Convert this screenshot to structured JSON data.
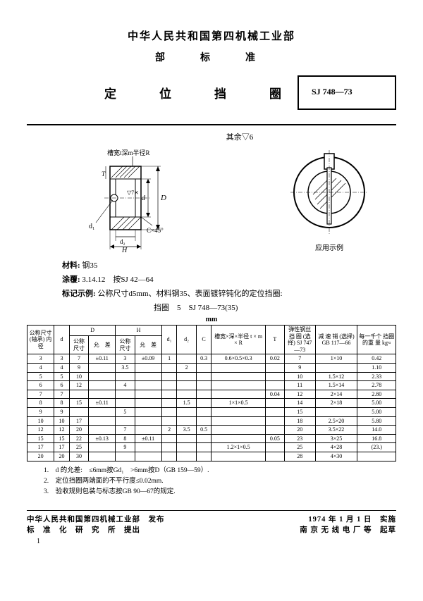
{
  "header": {
    "org": "中华人民共和国第四机械工业部",
    "sub": "部　标　准",
    "title": "定　位　挡　圈",
    "std_num": "SJ 748—73"
  },
  "diagram": {
    "top_note": "其余▽6",
    "callout_groove": "槽宽t深m半径R",
    "callout_dims": [
      "d",
      "d₁",
      "d₂",
      "H",
      "C×45°",
      "▽7⨯"
    ],
    "right_caption": "应用示例"
  },
  "notes": {
    "material_label": "材料:",
    "material_val": "钢35",
    "coating_label": "涂覆:",
    "coating_val": "3.14.12　按SJ 42—64",
    "example_label": "标记示例:",
    "example_val": "公称尺寸d5mm、材料钢35、表面镀锌钝化的定位挡圈:",
    "example_line2": "挡圈　5　SJ 748—73(35)"
  },
  "table": {
    "unit": "mm",
    "headers": {
      "nominal": "公称尺寸\n(轴承)\n内径",
      "d": "d",
      "D": "D",
      "D_nom": "公称\n尺寸",
      "D_tol": "允　差",
      "H": "H",
      "H_nom": "公称\n尺寸",
      "H_tol": "允　差",
      "d1": "d₁",
      "d2": "d₂",
      "C": "C",
      "groove": "槽宽×深×半径\nt × m × R",
      "spring": "弹性钢丝\n  挡  圈\n(选择)\nSJ 747—73",
      "T": "T",
      "pin": "减  速  销\n(选择)\nGB 117—66",
      "weight": "每一千个\n挡圈的重\n量  kg≈"
    },
    "rows": [
      {
        "nom": "3",
        "d": "3",
        "D": "7",
        "Dtol": "±0.11",
        "H": "3",
        "Htol": "±0.09",
        "d1": "1",
        "d2": "",
        "C": "0.3",
        "groove": "0.6×0.5×0.3",
        "T": "0.02",
        "spring": "7",
        "pin": "1×10",
        "wt": "0.42"
      },
      {
        "nom": "4",
        "d": "4",
        "D": "9",
        "Dtol": "",
        "H": "3.5",
        "Htol": "",
        "d1": "",
        "d2": "2",
        "C": "",
        "groove": "",
        "T": "",
        "spring": "9",
        "pin": "",
        "wt": "1.10"
      },
      {
        "nom": "5",
        "d": "5",
        "D": "10",
        "Dtol": "",
        "H": "",
        "Htol": "",
        "d1": "",
        "d2": "",
        "C": "",
        "groove": "",
        "T": "",
        "spring": "10",
        "pin": "1.5×12",
        "wt": "2.33"
      },
      {
        "nom": "6",
        "d": "6",
        "D": "12",
        "Dtol": "",
        "H": "4",
        "Htol": "",
        "d1": "",
        "d2": "",
        "C": "",
        "groove": "",
        "T": "",
        "spring": "11",
        "pin": "1.5×14",
        "wt": "2.78"
      },
      {
        "nom": "7",
        "d": "7",
        "D": "",
        "Dtol": "",
        "H": "",
        "Htol": "",
        "d1": "",
        "d2": "",
        "C": "",
        "groove": "",
        "T": "0.04",
        "spring": "12",
        "pin": "2×14",
        "wt": "2.80"
      },
      {
        "nom": "8",
        "d": "8",
        "D": "15",
        "Dtol": "±0.11",
        "H": "",
        "Htol": "",
        "d1": "",
        "d2": "1.5",
        "C": "",
        "groove": "1×1×0.5",
        "T": "",
        "spring": "14",
        "pin": "2×18",
        "wt": "5.00"
      },
      {
        "nom": "9",
        "d": "9",
        "D": "",
        "Dtol": "",
        "H": "5",
        "Htol": "",
        "d1": "",
        "d2": "",
        "C": "",
        "groove": "",
        "T": "",
        "spring": "15",
        "pin": "",
        "wt": "5.00"
      },
      {
        "nom": "10",
        "d": "10",
        "D": "17",
        "Dtol": "",
        "H": "",
        "Htol": "",
        "d1": "",
        "d2": "",
        "C": "",
        "groove": "",
        "T": "",
        "spring": "18",
        "pin": "2.5×20",
        "wt": "5.80"
      },
      {
        "nom": "12",
        "d": "12",
        "D": "20",
        "Dtol": "",
        "H": "7",
        "Htol": "",
        "d1": "2",
        "d2": "3.5",
        "C": "0.5",
        "groove": "",
        "T": "",
        "spring": "20",
        "pin": "3.5×22",
        "wt": "14.0"
      },
      {
        "nom": "15",
        "d": "15",
        "D": "22",
        "Dtol": "±0.13",
        "H": "8",
        "Htol": "±0.11",
        "d1": "",
        "d2": "",
        "C": "",
        "groove": "",
        "T": "0.05",
        "spring": "23",
        "pin": "3×25",
        "wt": "16.8"
      },
      {
        "nom": "17",
        "d": "17",
        "D": "25",
        "Dtol": "",
        "H": "9",
        "Htol": "",
        "d1": "",
        "d2": "",
        "C": "",
        "groove": "1.2×1×0.5",
        "T": "",
        "spring": "25",
        "pin": "4×28",
        "wt": "(23.)"
      },
      {
        "nom": "20",
        "d": "20",
        "D": "30",
        "Dtol": "",
        "H": "",
        "Htol": "",
        "d1": "",
        "d2": "",
        "C": "",
        "groove": "",
        "T": "",
        "spring": "28",
        "pin": "4×30",
        "wt": ""
      }
    ],
    "footnotes": [
      "1.　d 的允差:　≤6mm按Gd₁　>6mm按D（GB 159—59）.",
      "2.　定位挡圈两端面的不平行度≤0.02mm.",
      "3.　验收规则包装与标志按GB 90—67的规定."
    ]
  },
  "footer": {
    "left1": "中华人民共和国第四机械工业部　发布",
    "left2": "标　准　化　研　究　所　提出",
    "right1": "1974 年 1 月 1 日　实施",
    "right2": "南 京 无 线 电 厂 等　起草",
    "page": "1"
  }
}
